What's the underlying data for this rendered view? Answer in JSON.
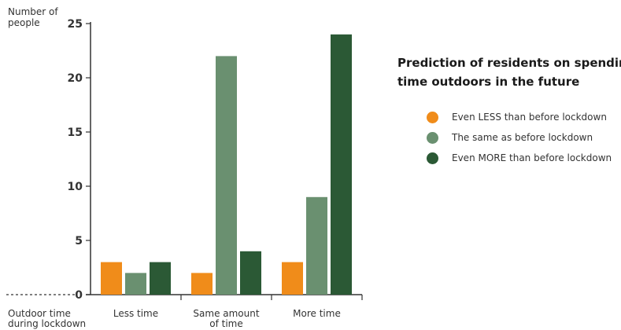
{
  "chart_data": {
    "type": "bar",
    "title_lines": [
      "Prediction of residents on spending",
      "time outdoors in the future"
    ],
    "ylabel_lines": [
      "Number of",
      "people"
    ],
    "xlabel_lines": [
      "Outdoor time",
      "during lockdown"
    ],
    "categories": [
      [
        "Less time"
      ],
      [
        "Same amount",
        "of time"
      ],
      [
        "More time"
      ]
    ],
    "ylim": [
      0,
      25
    ],
    "yticks": [
      0,
      5,
      10,
      15,
      20,
      25
    ],
    "legend_position": "right",
    "grid": false,
    "series": [
      {
        "name": "Even LESS than before lockdown",
        "color": "#f08c1a",
        "values": [
          3,
          2,
          3
        ]
      },
      {
        "name": "The same as before lockdown",
        "color": "#6a9070",
        "values": [
          2,
          22,
          9
        ]
      },
      {
        "name": "Even MORE than before lockdown",
        "color": "#2b5935",
        "values": [
          3,
          4,
          24
        ]
      }
    ]
  }
}
